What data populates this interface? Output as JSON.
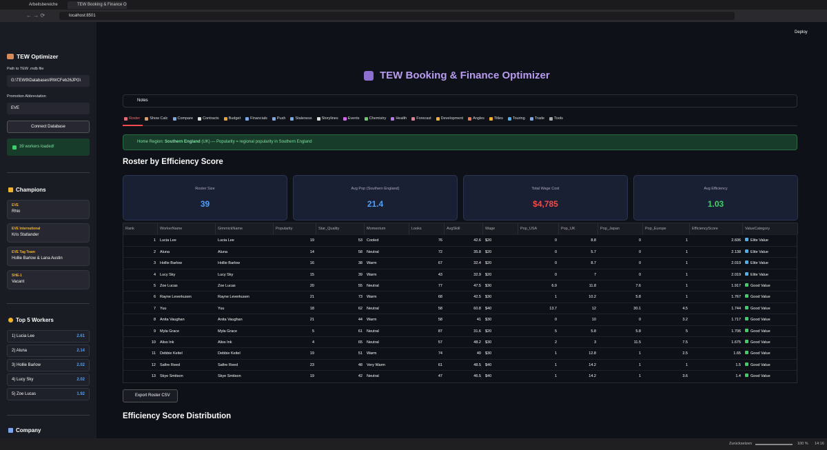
{
  "browser": {
    "tabs": [
      "Arbeitsbereiche",
      "TEW Booking & Finance Op"
    ],
    "url": "localhost:8501",
    "status": {
      "reset": "Zurücksetzen",
      "zoom": "100 %",
      "time": "14:16"
    }
  },
  "sidebar": {
    "title": "TEW Optimizer",
    "path_label": "Path to TEW .mdb file",
    "path_value": "G:\\TEW9\\Databases\\RWCFeb26JPG\\",
    "promo_label": "Promotion Abbreviation",
    "promo_value": "EVE",
    "connect_button": "Connect Database",
    "status": "39 workers loaded!",
    "champions_heading": "Champions",
    "champions": [
      {
        "title": "EVE",
        "holder": "Rhio"
      },
      {
        "title": "EVE International",
        "holder": "Kris Statlander"
      },
      {
        "title": "EVE Tag Team",
        "holder": "Hollie Barlow & Lana Austin"
      },
      {
        "title": "SHE-1",
        "holder": "Vacant"
      }
    ],
    "top_heading": "Top 5 Workers",
    "top_workers": [
      {
        "name": "1) Lucia Lee",
        "score": 2.61
      },
      {
        "name": "2) Aluna",
        "score": 2.14
      },
      {
        "name": "3) Hollie Barlow",
        "score": 2.02
      },
      {
        "name": "4) Lucy Sky",
        "score": 2.02
      },
      {
        "name": "5) Zoe Lucas",
        "score": 1.92
      }
    ],
    "company_heading": "Company"
  },
  "main": {
    "deploy": "Deploy",
    "title": "TEW Booking & Finance Optimizer",
    "notes": "Notes",
    "tabs": [
      "Roster",
      "Show Calc",
      "Compare",
      "Contracts",
      "Budget",
      "Financials",
      "Push",
      "Staleness",
      "Storylines",
      "Events",
      "Chemistry",
      "Health",
      "Forecast",
      "Development",
      "Angles",
      "Titles",
      "Touring",
      "Trade",
      "Tools"
    ],
    "info": {
      "prefix": "Home Region: ",
      "region": "Southern England",
      "suffix": " (UK) — Popularity = regional popularity in Southern England"
    },
    "heading": "Roster by Efficiency Score",
    "metrics": [
      {
        "label": "Roster Size",
        "value": "39",
        "color": "#4f9ff7"
      },
      {
        "label": "Avg Pop (Southern England)",
        "value": "21.4",
        "color": "#4f9ff7"
      },
      {
        "label": "Total Wage Cost",
        "value": "$4,785",
        "color": "#f24b4b"
      },
      {
        "label": "Avg Efficiency",
        "value": "1.03",
        "color": "#3ecf6c"
      }
    ],
    "table": {
      "columns": [
        "Rank",
        "WorkerName",
        "GimmickName",
        "Popularity",
        "Star_Quality",
        "Momentum",
        "Looks",
        "AvgSkill",
        "Wage",
        "Pop_USA",
        "Pop_UK",
        "Pop_Japan",
        "Pop_Europe",
        "EfficiencyScore",
        "ValueCategory"
      ],
      "rows": [
        [
          1,
          "Lucia Lee",
          "Lucia Lee",
          19,
          53,
          "Cooled",
          76,
          42.6,
          "$20",
          0,
          8.8,
          0,
          1,
          2.606,
          "Elite Value"
        ],
        [
          2,
          "Aluna",
          "Aluna",
          14,
          58,
          "Neutral",
          72,
          35.8,
          "$20",
          0,
          5.7,
          0,
          1,
          2.138,
          "Elite Value"
        ],
        [
          3,
          "Hollie Barlow",
          "Hollie Barlow",
          16,
          38,
          "Warm",
          67,
          32.4,
          "$20",
          0,
          8.7,
          0,
          1,
          2.019,
          "Elite Value"
        ],
        [
          4,
          "Lucy Sky",
          "Lucy Sky",
          15,
          39,
          "Warm",
          43,
          32.9,
          "$20",
          0,
          7,
          0,
          1,
          2.019,
          "Elite Value"
        ],
        [
          5,
          "Zoe Lucas",
          "Zoe Lucas",
          20,
          55,
          "Neutral",
          77,
          47.5,
          "$30",
          6.9,
          11.8,
          7.6,
          1,
          1.917,
          "Good Value"
        ],
        [
          6,
          "Rayne Leverkusen",
          "Rayne Leverkusen",
          21,
          73,
          "Warm",
          68,
          42.5,
          "$30",
          1,
          10.2,
          5.8,
          1,
          1.767,
          "Good Value"
        ],
        [
          7,
          "Yuu",
          "Yuu",
          18,
          62,
          "Neutral",
          58,
          60.8,
          "$40",
          13.7,
          12,
          30.1,
          4.5,
          1.744,
          "Good Value"
        ],
        [
          8,
          "Anita Vaughan",
          "Anita Vaughan",
          21,
          44,
          "Warm",
          58,
          41,
          "$30",
          0,
          10,
          0,
          3.2,
          1.717,
          "Good Value"
        ],
        [
          9,
          "Myla Grace",
          "Myla Grace",
          5,
          61,
          "Neutral",
          87,
          31.6,
          "$20",
          5,
          5.8,
          5.8,
          5,
          1.706,
          "Good Value"
        ],
        [
          10,
          "Aliss Ink",
          "Aliss Ink",
          4,
          65,
          "Neutral",
          57,
          48.2,
          "$30",
          2,
          3,
          11.5,
          7.5,
          1.675,
          "Good Value"
        ],
        [
          11,
          "Debbie Keitel",
          "Debbie Keitel",
          19,
          51,
          "Warm",
          74,
          40,
          "$30",
          1,
          12.8,
          1,
          2.5,
          1.65,
          "Good Value"
        ],
        [
          12,
          "Safire Reed",
          "Safire Reed",
          23,
          48,
          "Very Warm",
          61,
          48.5,
          "$40",
          1,
          14.2,
          1,
          1,
          1.5,
          "Good Value"
        ],
        [
          13,
          "Skye Smitson",
          "Skye Smitson",
          19,
          42,
          "Neutral",
          47,
          46.5,
          "$40",
          1,
          14.2,
          1,
          3.6,
          1.4,
          "Good Value"
        ]
      ]
    },
    "export_button": "Export Roster CSV",
    "heading2": "Efficiency Score Distribution"
  }
}
